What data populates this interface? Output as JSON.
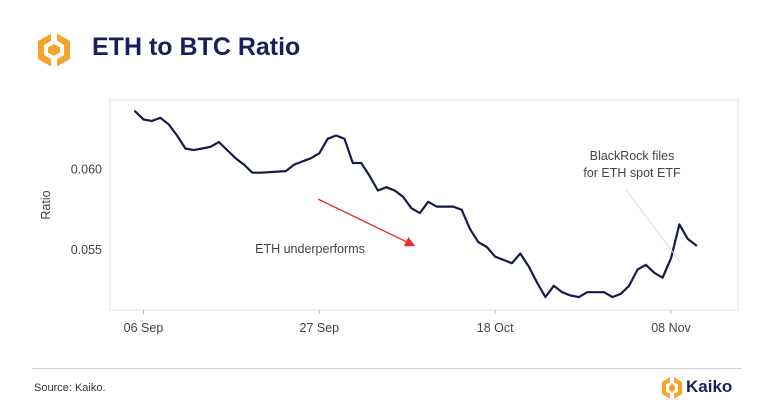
{
  "header": {
    "title": "ETH to BTC Ratio"
  },
  "footer": {
    "source": "Source: Kaiko.",
    "brand": "Kaiko"
  },
  "colors": {
    "line": "#141a4a",
    "arrow": "#e53030",
    "title": "#16205a",
    "logo_orange": "#f5a32a"
  },
  "icons": {
    "header_logo": "kaiko-logo-icon",
    "footer_logo": "kaiko-logo-icon"
  },
  "chart_data": {
    "type": "line",
    "title": "ETH to BTC Ratio",
    "xlabel": "",
    "ylabel": "Ratio",
    "x_ticks": [
      "06 Sep",
      "27 Sep",
      "18 Oct",
      "08 Nov"
    ],
    "y_ticks": [
      "0.055",
      "0.060"
    ],
    "xlim": [
      "2023-09-02",
      "2023-11-16"
    ],
    "ylim": [
      0.0513,
      0.0643
    ],
    "grid": false,
    "legend": "none",
    "series": [
      {
        "x": [
          "2023-09-05",
          "2023-09-06",
          "2023-09-07",
          "2023-09-08",
          "2023-09-09",
          "2023-09-10",
          "2023-09-11",
          "2023-09-12",
          "2023-09-13",
          "2023-09-14",
          "2023-09-15",
          "2023-09-16",
          "2023-09-17",
          "2023-09-18",
          "2023-09-19",
          "2023-09-20",
          "2023-09-23",
          "2023-09-24",
          "2023-09-25",
          "2023-09-26",
          "2023-09-27",
          "2023-09-28",
          "2023-09-29",
          "2023-09-30",
          "2023-10-01",
          "2023-10-02",
          "2023-10-03",
          "2023-10-04",
          "2023-10-05",
          "2023-10-06",
          "2023-10-07",
          "2023-10-08",
          "2023-10-09",
          "2023-10-10",
          "2023-10-11",
          "2023-10-12",
          "2023-10-13",
          "2023-10-14",
          "2023-10-15",
          "2023-10-16",
          "2023-10-17",
          "2023-10-18",
          "2023-10-19",
          "2023-10-20",
          "2023-10-21",
          "2023-10-22",
          "2023-10-23",
          "2023-10-24",
          "2023-10-25",
          "2023-10-26",
          "2023-10-27",
          "2023-10-28",
          "2023-10-29",
          "2023-10-30",
          "2023-10-31",
          "2023-11-01",
          "2023-11-02",
          "2023-11-03",
          "2023-11-04",
          "2023-11-05",
          "2023-11-06",
          "2023-11-07",
          "2023-11-08",
          "2023-11-09",
          "2023-11-10",
          "2023-11-11"
        ],
        "values": [
          0.0636,
          0.0631,
          0.063,
          0.0632,
          0.0628,
          0.0621,
          0.0613,
          0.0612,
          0.0613,
          0.0614,
          0.0617,
          0.0612,
          0.0607,
          0.0603,
          0.0598,
          0.0598,
          0.0599,
          0.0603,
          0.0605,
          0.0607,
          0.061,
          0.0619,
          0.0621,
          0.0619,
          0.0604,
          0.0604,
          0.0596,
          0.0587,
          0.0589,
          0.0587,
          0.0583,
          0.0576,
          0.0573,
          0.058,
          0.0577,
          0.0577,
          0.0577,
          0.0575,
          0.0563,
          0.0555,
          0.0552,
          0.0546,
          0.0544,
          0.0542,
          0.0548,
          0.054,
          0.053,
          0.0521,
          0.0528,
          0.0524,
          0.0522,
          0.0521,
          0.0524,
          0.0524,
          0.0524,
          0.0521,
          0.0523,
          0.0528,
          0.0538,
          0.0541,
          0.0536,
          0.0533,
          0.0545,
          0.0566,
          0.0557,
          0.0553
        ]
      }
    ],
    "annotations": [
      {
        "text": "ETH underperforms",
        "type": "arrow"
      },
      {
        "text_lines": [
          "BlackRock files",
          "for ETH spot ETF"
        ],
        "type": "pointer",
        "date": "2023-11-09",
        "value": 0.0541
      }
    ]
  }
}
